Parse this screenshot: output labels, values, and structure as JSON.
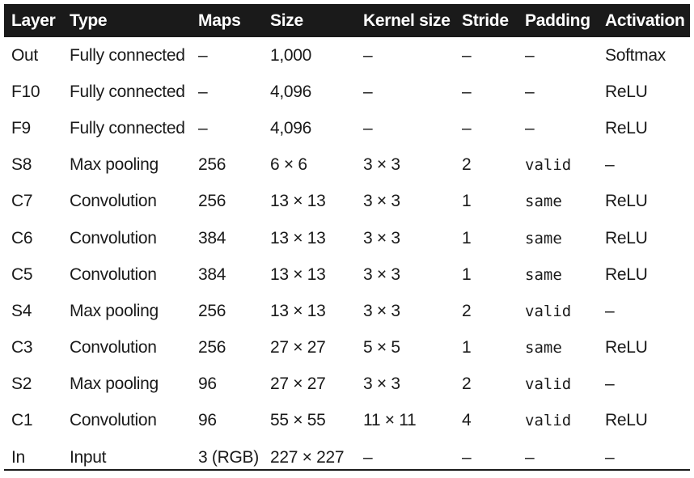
{
  "columns": [
    "Layer",
    "Type",
    "Maps",
    "Size",
    "Kernel size",
    "Stride",
    "Padding",
    "Activation"
  ],
  "rows": [
    [
      "Out",
      "Fully connected",
      "–",
      "1,000",
      "–",
      "–",
      "–",
      "Softmax"
    ],
    [
      "F10",
      "Fully connected",
      "–",
      "4,096",
      "–",
      "–",
      "–",
      "ReLU"
    ],
    [
      "F9",
      "Fully connected",
      "–",
      "4,096",
      "–",
      "–",
      "–",
      "ReLU"
    ],
    [
      "S8",
      "Max pooling",
      "256",
      "6 × 6",
      "3 × 3",
      "2",
      "valid",
      "–"
    ],
    [
      "C7",
      "Convolution",
      "256",
      "13 × 13",
      "3 × 3",
      "1",
      "same",
      "ReLU"
    ],
    [
      "C6",
      "Convolution",
      "384",
      "13 × 13",
      "3 × 3",
      "1",
      "same",
      "ReLU"
    ],
    [
      "C5",
      "Convolution",
      "384",
      "13 × 13",
      "3 × 3",
      "1",
      "same",
      "ReLU"
    ],
    [
      "S4",
      "Max pooling",
      "256",
      "13 × 13",
      "3 × 3",
      "2",
      "valid",
      "–"
    ],
    [
      "C3",
      "Convolution",
      "256",
      "27 × 27",
      "5 × 5",
      "1",
      "same",
      "ReLU"
    ],
    [
      "S2",
      "Max pooling",
      "96",
      "27 × 27",
      "3 × 3",
      "2",
      "valid",
      "–"
    ],
    [
      "C1",
      "Convolution",
      "96",
      "55 × 55",
      "11 × 11",
      "4",
      "valid",
      "ReLU"
    ],
    [
      "In",
      "Input",
      "3 (RGB)",
      "227 × 227",
      "–",
      "–",
      "–",
      "–"
    ]
  ],
  "colors": {
    "header_background": "#1a1a1a",
    "header_text": "#ffffff",
    "body_text": "#1a1a1a"
  }
}
